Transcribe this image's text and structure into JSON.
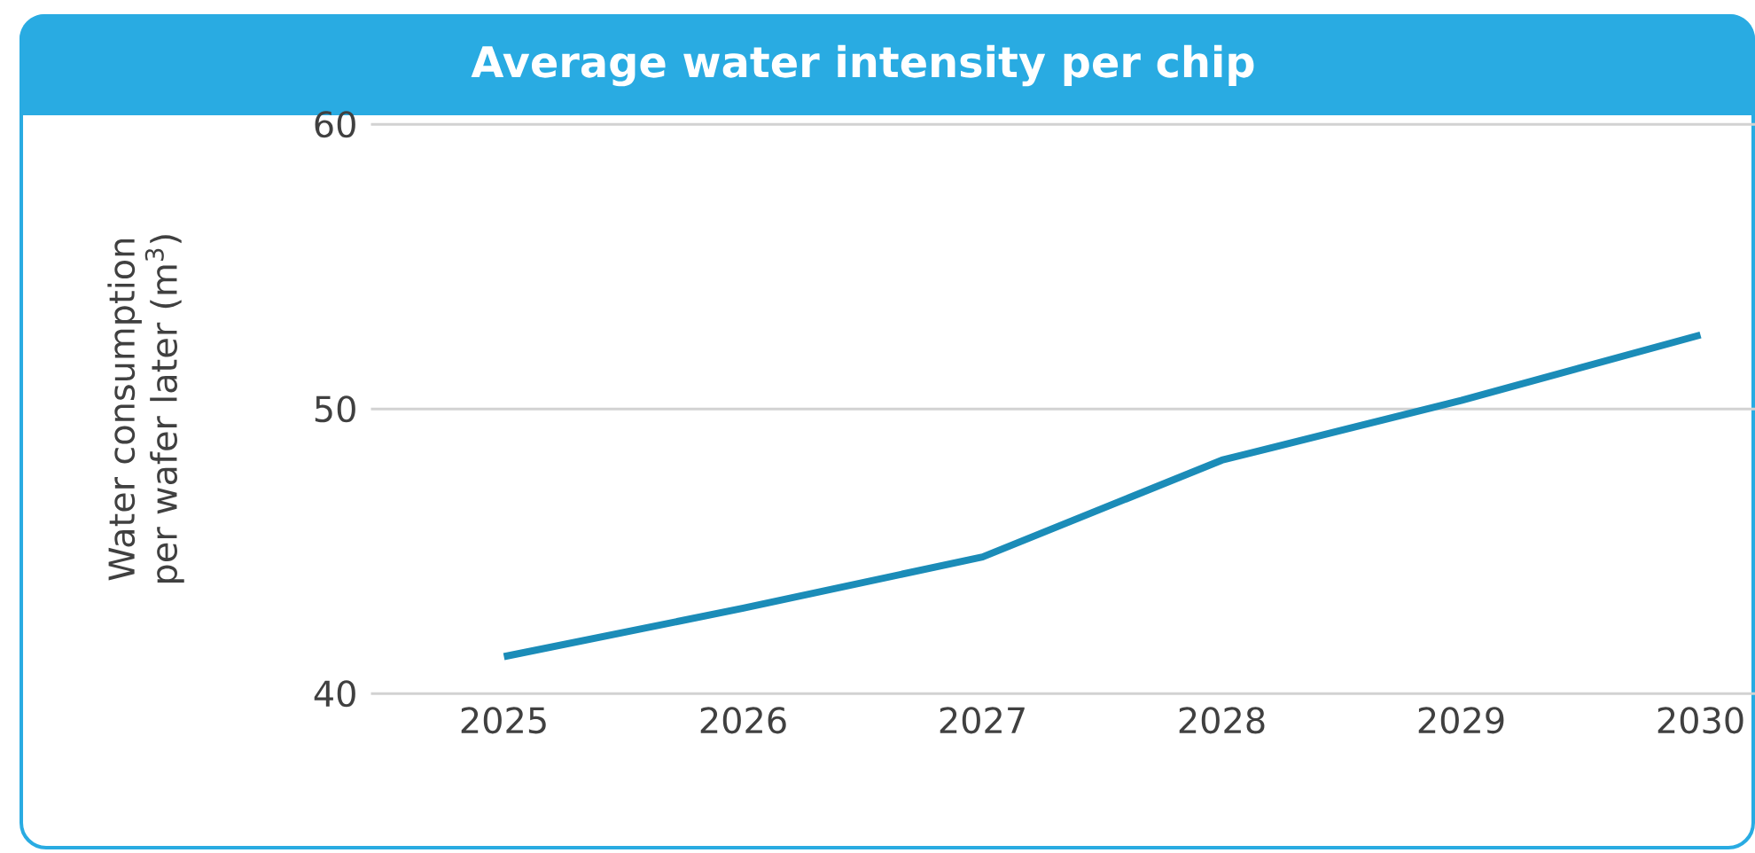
{
  "chart_data": {
    "type": "line",
    "title": "Average water intensity per chip",
    "ylabel": "Water consumption per wafer later (m$^{3}$)",
    "categories": [
      "2025",
      "2026",
      "2027",
      "2028",
      "2029",
      "2030"
    ],
    "values": [
      41.3,
      43.0,
      44.8,
      48.2,
      50.3,
      52.6
    ],
    "color": "#1b8cb8",
    "ylim": [
      40,
      60
    ],
    "yticks": [
      40,
      50,
      60
    ],
    "grid": "y",
    "marker": "none",
    "line_style": "solid"
  }
}
